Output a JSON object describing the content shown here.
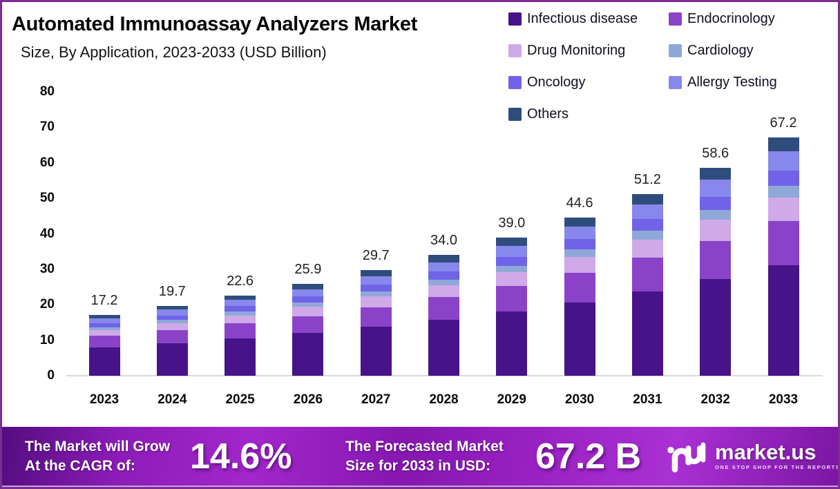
{
  "header": {
    "title": "Automated Immunoassay Analyzers Market",
    "subtitle": "Size, By Application, 2023-2033 (USD Billion)"
  },
  "chart_data": {
    "type": "bar",
    "stacked": true,
    "title": "Automated Immunoassay Analyzers Market Size, By Application, 2023-2033 (USD Billion)",
    "categories": [
      "2023",
      "2024",
      "2025",
      "2026",
      "2027",
      "2028",
      "2029",
      "2030",
      "2031",
      "2032",
      "2033"
    ],
    "totals": [
      17.2,
      19.7,
      22.6,
      25.9,
      29.7,
      34.0,
      39.0,
      44.6,
      51.2,
      58.6,
      67.2
    ],
    "total_labels": [
      "17.2",
      "19.7",
      "22.6",
      "25.9",
      "29.7",
      "34.0",
      "39.0",
      "44.6",
      "51.2",
      "58.6",
      "67.2"
    ],
    "series": [
      {
        "name": "Infectious disease",
        "color": "#471388",
        "values": [
          8.0,
          9.2,
          10.5,
          12.0,
          13.8,
          15.8,
          18.1,
          20.7,
          23.8,
          27.2,
          31.2
        ]
      },
      {
        "name": "Endocrinology",
        "color": "#8a43c8",
        "values": [
          3.2,
          3.6,
          4.2,
          4.8,
          5.5,
          6.3,
          7.2,
          8.3,
          9.5,
          10.8,
          12.4
        ]
      },
      {
        "name": "Drug Monitoring",
        "color": "#cfa9e8",
        "values": [
          1.7,
          2.0,
          2.3,
          2.6,
          3.0,
          3.4,
          3.9,
          4.5,
          5.1,
          5.9,
          6.7
        ]
      },
      {
        "name": "Cardiology",
        "color": "#8fa8d8",
        "values": [
          0.8,
          0.9,
          1.1,
          1.2,
          1.4,
          1.6,
          1.8,
          2.1,
          2.4,
          2.8,
          3.2
        ]
      },
      {
        "name": "Oncology",
        "color": "#7063e8",
        "values": [
          1.1,
          1.3,
          1.5,
          1.7,
          1.9,
          2.2,
          2.5,
          2.9,
          3.3,
          3.8,
          4.4
        ]
      },
      {
        "name": "Allergy Testing",
        "color": "#8787ec",
        "values": [
          1.4,
          1.6,
          1.8,
          2.1,
          2.4,
          2.7,
          3.1,
          3.6,
          4.1,
          4.7,
          5.4
        ]
      },
      {
        "name": "Others",
        "color": "#2e4d7d",
        "values": [
          1.0,
          1.1,
          1.2,
          1.5,
          1.7,
          2.0,
          2.4,
          2.5,
          3.0,
          3.4,
          3.9
        ]
      }
    ],
    "legend_order": [
      "Infectious disease",
      "Endocrinology",
      "Drug Monitoring",
      "Cardiology",
      "Oncology",
      "Allergy Testing",
      "Others"
    ],
    "legend_position": "top-right",
    "y_ticks": [
      0,
      10,
      20,
      30,
      40,
      50,
      60,
      70,
      80
    ],
    "ylim": [
      0,
      80
    ],
    "xlabel": "",
    "ylabel": "",
    "grid": false
  },
  "footer": {
    "cagr_label_line1": "The Market will Grow",
    "cagr_label_line2": "At the CAGR of:",
    "cagr_value": "14.6%",
    "forecast_label_line1": "The Forecasted Market",
    "forecast_label_line2": "Size for 2033 in USD:",
    "forecast_value": "67.2 B",
    "brand": {
      "name": "market.us",
      "tagline": "ONE STOP SHOP FOR THE REPORTS"
    }
  },
  "colors": {
    "frame_border": "#7d2d92",
    "axis_line": "#d9d9d9",
    "banner_gradient_start": "#530d7f",
    "banner_gradient_bright": "#aa30d4",
    "text_dark": "#0a0a0a",
    "banner_text": "#ffffff"
  }
}
